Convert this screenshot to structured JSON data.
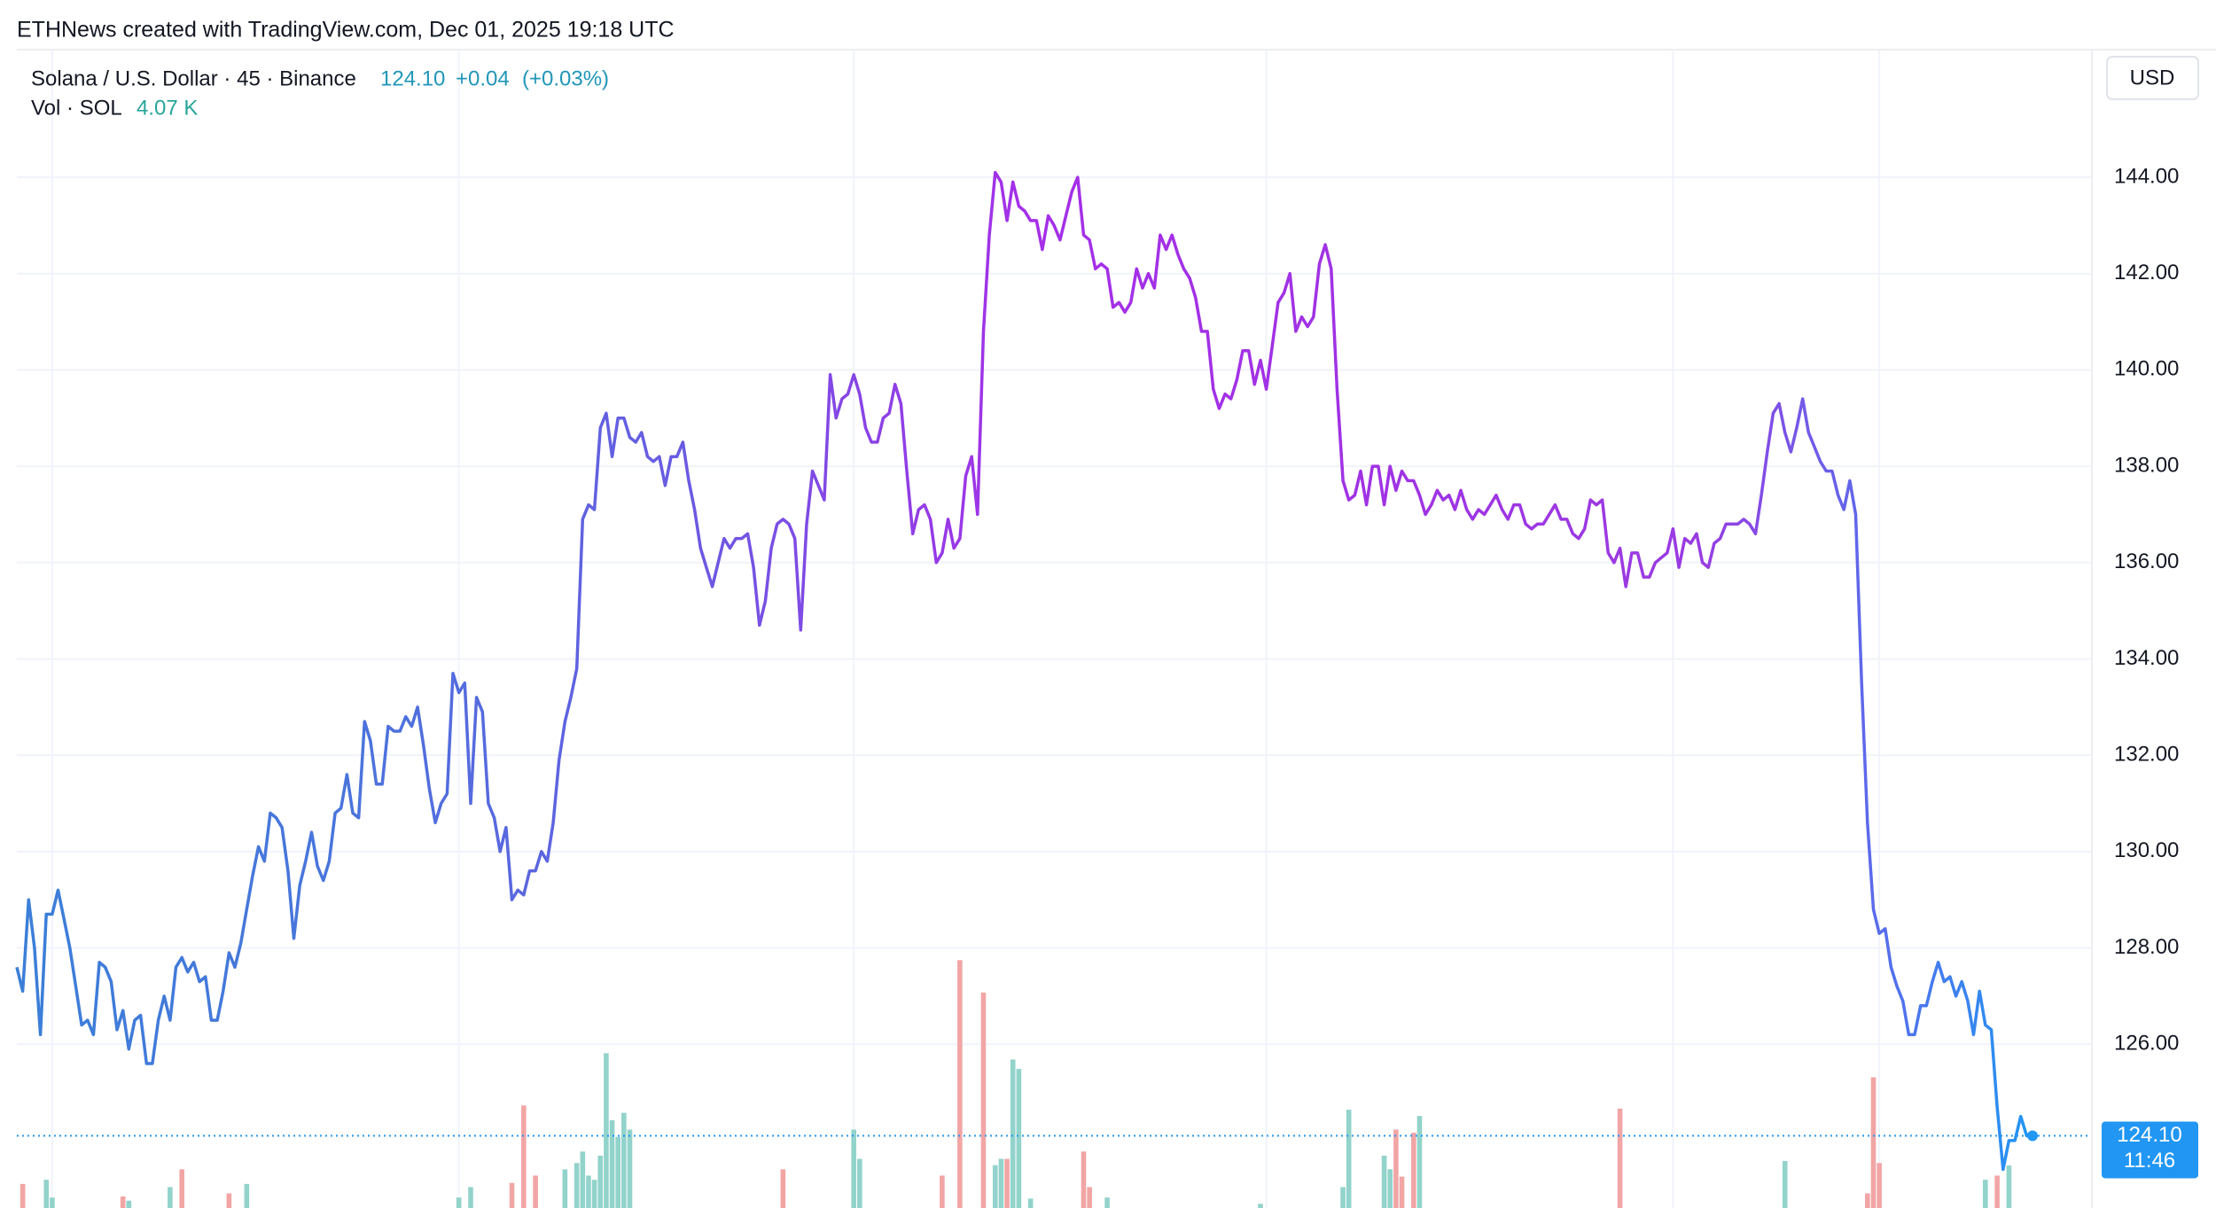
{
  "chart_data": {
    "type": "line",
    "attribution": "ETHNews created with TradingView.com, Dec 01, 2025 19:18 UTC",
    "symbol": "Solana / U.S. Dollar · 45 · Binance",
    "last_price": {
      "value": 124.1,
      "label": "124.10"
    },
    "change": "+0.04",
    "change_pct": "(+0.03%)",
    "countdown": "11:46",
    "currency": "USD",
    "volume_title": "Vol · SOL",
    "ylim": [
      122.6,
      146.65
    ],
    "yticks": [
      {
        "value": 126,
        "label": "126.00"
      },
      {
        "value": 128,
        "label": "128.00"
      },
      {
        "value": 130,
        "label": "130.00"
      },
      {
        "value": 132,
        "label": "132.00"
      },
      {
        "value": 134,
        "label": "134.00"
      },
      {
        "value": 136,
        "label": "136.00"
      },
      {
        "value": 138,
        "label": "138.00"
      },
      {
        "value": 140,
        "label": "140.00"
      },
      {
        "value": 142,
        "label": "142.00"
      },
      {
        "value": 144,
        "label": "144.00"
      }
    ],
    "xgrid": [
      6,
      75,
      142,
      212,
      281,
      316
    ],
    "grid": true,
    "gradient": [
      "#3b7fd8",
      "#4a74dc",
      "#6a5ae2",
      "#a52fe8",
      "#a032e4",
      "#9a3be2",
      "#2196f3"
    ],
    "series": [
      {
        "values": [
          127.6,
          127.1,
          129.0,
          128.0,
          126.2,
          128.7,
          128.7,
          129.2,
          128.6,
          128.0,
          127.2,
          126.4,
          126.5,
          126.2,
          127.7,
          127.6,
          127.3,
          126.3,
          126.7,
          125.9,
          126.5,
          126.6,
          125.6,
          125.6,
          126.5,
          127.0,
          126.5,
          127.6,
          127.8,
          127.5,
          127.7,
          127.3,
          127.4,
          126.5,
          126.5,
          127.1,
          127.9,
          127.6,
          128.1,
          128.8,
          129.5,
          130.1,
          129.8,
          130.8,
          130.7,
          130.5,
          129.6,
          128.2,
          129.3,
          129.8,
          130.4,
          129.7,
          129.4,
          129.8,
          130.8,
          130.9,
          131.6,
          130.8,
          130.7,
          132.7,
          132.3,
          131.4,
          131.4,
          132.6,
          132.5,
          132.5,
          132.8,
          132.6,
          133.0,
          132.2,
          131.3,
          130.6,
          131.0,
          131.2,
          133.7,
          133.3,
          133.5,
          131.0,
          133.2,
          132.9,
          131.0,
          130.7,
          130.0,
          130.5,
          129.0,
          129.2,
          129.1,
          129.6,
          129.6,
          130.0,
          129.8,
          130.6,
          131.9,
          132.7,
          133.2,
          133.8,
          136.9,
          137.2,
          137.1,
          138.8,
          139.1,
          138.2,
          139.0,
          139.0,
          138.6,
          138.5,
          138.7,
          138.2,
          138.1,
          138.2,
          137.6,
          138.2,
          138.2,
          138.5,
          137.7,
          137.1,
          136.3,
          135.9,
          135.5,
          136.0,
          136.5,
          136.3,
          136.5,
          136.5,
          136.6,
          135.9,
          134.7,
          135.2,
          136.3,
          136.8,
          136.9,
          136.8,
          136.5,
          134.6,
          136.8,
          137.9,
          137.6,
          137.3,
          139.9,
          139.0,
          139.4,
          139.5,
          139.9,
          139.5,
          138.8,
          138.5,
          138.5,
          139.0,
          139.1,
          139.7,
          139.3,
          137.9,
          136.6,
          137.1,
          137.2,
          136.9,
          136.0,
          136.2,
          136.9,
          136.3,
          136.5,
          137.8,
          138.2,
          137.0,
          140.8,
          142.8,
          144.1,
          143.9,
          143.1,
          143.9,
          143.4,
          143.3,
          143.1,
          143.1,
          142.5,
          143.2,
          143.0,
          142.7,
          143.2,
          143.7,
          144.0,
          142.8,
          142.7,
          142.1,
          142.2,
          142.1,
          141.3,
          141.4,
          141.2,
          141.4,
          142.1,
          141.7,
          142.0,
          141.7,
          142.8,
          142.5,
          142.8,
          142.4,
          142.1,
          141.9,
          141.5,
          140.8,
          140.8,
          139.6,
          139.2,
          139.5,
          139.4,
          139.8,
          140.4,
          140.4,
          139.7,
          140.2,
          139.6,
          140.5,
          141.4,
          141.6,
          142.0,
          140.8,
          141.1,
          140.9,
          141.1,
          142.2,
          142.6,
          142.1,
          139.6,
          137.7,
          137.3,
          137.4,
          137.9,
          137.2,
          138.0,
          138.0,
          137.2,
          138.0,
          137.5,
          137.9,
          137.7,
          137.7,
          137.4,
          137.0,
          137.2,
          137.5,
          137.3,
          137.4,
          137.1,
          137.5,
          137.1,
          136.9,
          137.1,
          137.0,
          137.2,
          137.4,
          137.1,
          136.9,
          137.2,
          137.2,
          136.8,
          136.7,
          136.8,
          136.8,
          137.0,
          137.2,
          136.9,
          136.9,
          136.6,
          136.5,
          136.7,
          137.3,
          137.2,
          137.3,
          136.2,
          136.0,
          136.3,
          135.5,
          136.2,
          136.2,
          135.7,
          135.7,
          136.0,
          136.1,
          136.2,
          136.7,
          135.9,
          136.5,
          136.4,
          136.6,
          136.0,
          135.9,
          136.4,
          136.5,
          136.8,
          136.8,
          136.8,
          136.9,
          136.8,
          136.6,
          137.4,
          138.3,
          139.1,
          139.3,
          138.7,
          138.3,
          138.8,
          139.4,
          138.7,
          138.4,
          138.1,
          137.9,
          137.9,
          137.4,
          137.1,
          137.7,
          137.0,
          133.5,
          130.6,
          128.8,
          128.3,
          128.4,
          127.6,
          127.2,
          126.9,
          126.2,
          126.2,
          126.8,
          126.8,
          127.3,
          127.7,
          127.3,
          127.4,
          127.0,
          127.3,
          126.9,
          126.2,
          127.1,
          126.4,
          126.3,
          124.7,
          123.4,
          124.0,
          124.0,
          124.5,
          124.1,
          124.1
        ]
      }
    ],
    "volume": {
      "ylim": [
        0,
        40
      ],
      "x": [
        1,
        5,
        6,
        18,
        19,
        26,
        28,
        36,
        39,
        75,
        77,
        84,
        86,
        88,
        93,
        95,
        96,
        97,
        98,
        99,
        100,
        101,
        102,
        103,
        104,
        130,
        142,
        143,
        157,
        160,
        164,
        166,
        167,
        168,
        169,
        170,
        172,
        181,
        182,
        185,
        211,
        225,
        226,
        232,
        233,
        234,
        235,
        237,
        238,
        272,
        300,
        314,
        315,
        316,
        334,
        336,
        338
      ],
      "values": [
        2.3,
        2.7,
        1.0,
        1.1,
        0.7,
        2.0,
        3.7,
        1.4,
        2.3,
        1.0,
        2.0,
        2.4,
        9.8,
        3.1,
        3.7,
        4.3,
        5.4,
        3.1,
        2.7,
        5.0,
        14.8,
        8.4,
        6.8,
        9.1,
        7.5,
        3.7,
        7.5,
        4.7,
        3.1,
        23.7,
        20.6,
        4.1,
        4.7,
        4.7,
        14.2,
        13.3,
        0.9,
        5.4,
        2.0,
        1.0,
        0.4,
        2.0,
        9.4,
        5.0,
        3.7,
        7.5,
        3.0,
        7.2,
        8.8,
        9.5,
        4.5,
        1.4,
        12.5,
        4.3,
        2.7,
        3.1,
        4.07
      ],
      "colors": [
        "#f2a5a5",
        "#92d3cb",
        "#92d3cb",
        "#f2a5a5",
        "#92d3cb",
        "#92d3cb",
        "#f2a5a5",
        "#f2a5a5",
        "#92d3cb",
        "#92d3cb",
        "#92d3cb",
        "#f2a5a5",
        "#f2a5a5",
        "#f2a5a5",
        "#92d3cb",
        "#92d3cb",
        "#92d3cb",
        "#92d3cb",
        "#92d3cb",
        "#92d3cb",
        "#92d3cb",
        "#92d3cb",
        "#92d3cb",
        "#92d3cb",
        "#92d3cb",
        "#f2a5a5",
        "#92d3cb",
        "#92d3cb",
        "#f2a5a5",
        "#f2a5a5",
        "#f2a5a5",
        "#92d3cb",
        "#92d3cb",
        "#f2a5a5",
        "#92d3cb",
        "#92d3cb",
        "#92d3cb",
        "#f2a5a5",
        "#f2a5a5",
        "#92d3cb",
        "#92d3cb",
        "#92d3cb",
        "#92d3cb",
        "#92d3cb",
        "#92d3cb",
        "#f2a5a5",
        "#f2a5a5",
        "#f2a5a5",
        "#92d3cb",
        "#f2a5a5",
        "#92d3cb",
        "#f2a5a5",
        "#f2a5a5",
        "#f2a5a5",
        "#92d3cb",
        "#f2a5a5",
        "#92d3cb"
      ],
      "last_label": "4.07 K"
    },
    "n_points_color": "#2196f3"
  }
}
